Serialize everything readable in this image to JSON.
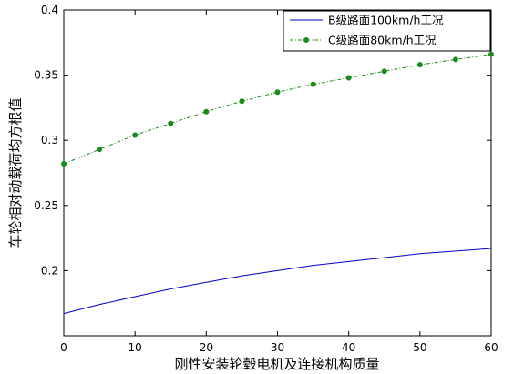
{
  "chart_data": {
    "type": "line",
    "xlabel": "刚性安装轮毂电机及连接机构质量",
    "ylabel": "车轮相对动载荷均方根值",
    "xlim": [
      0,
      60
    ],
    "ylim": [
      0.15,
      0.4
    ],
    "xticks": [
      0,
      10,
      20,
      30,
      40,
      50,
      60
    ],
    "yticks": [
      0.2,
      0.25,
      0.3,
      0.35,
      0.4
    ],
    "ytick_labels": [
      "0.2",
      "0.25",
      "0.3",
      "0.35",
      "0.4"
    ],
    "grid": false,
    "legend_position": "top-right",
    "series": [
      {
        "name": "B级路面100km/h工况",
        "color": "#0000cc",
        "style": "solid",
        "marker": "none",
        "x": [
          0,
          5,
          10,
          15,
          20,
          25,
          30,
          35,
          40,
          45,
          50,
          55,
          60
        ],
        "y": [
          0.167,
          0.174,
          0.18,
          0.186,
          0.191,
          0.196,
          0.2,
          0.204,
          0.207,
          0.21,
          0.213,
          0.215,
          0.217
        ]
      },
      {
        "name": "C级路面80km/h工况",
        "color": "#1a8a1a",
        "style": "dashdot",
        "marker": "circle",
        "x": [
          0,
          5,
          10,
          15,
          20,
          25,
          30,
          35,
          40,
          45,
          50,
          55,
          60
        ],
        "y": [
          0.282,
          0.293,
          0.304,
          0.313,
          0.322,
          0.33,
          0.337,
          0.343,
          0.348,
          0.353,
          0.358,
          0.362,
          0.366
        ]
      }
    ]
  }
}
